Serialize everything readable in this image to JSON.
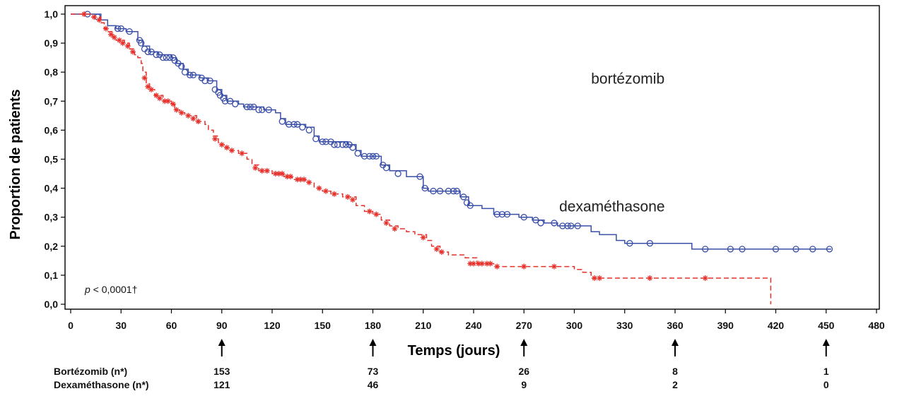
{
  "chart_data": {
    "type": "line",
    "title": "",
    "xlabel": "Temps (jours)",
    "ylabel": "Proportion de patients",
    "xlim": [
      0,
      480
    ],
    "ylim": [
      0,
      1
    ],
    "x_ticks": [
      0,
      30,
      60,
      90,
      120,
      150,
      180,
      210,
      240,
      270,
      300,
      330,
      360,
      390,
      420,
      450,
      480
    ],
    "x_tick_labels": [
      "0",
      "30",
      "60",
      "90",
      "120",
      "150",
      "180",
      "210",
      "240",
      "270",
      "300",
      "330",
      "360",
      "390",
      "420",
      "450",
      "480"
    ],
    "y_ticks": [
      0,
      0.1,
      0.2,
      0.3,
      0.4,
      0.5,
      0.6,
      0.7,
      0.8,
      0.9,
      1.0
    ],
    "y_tick_labels": [
      "0,0",
      "0,1",
      "0,2",
      "0,3",
      "0,4",
      "0,5",
      "0,6",
      "0,7",
      "0,8",
      "0,9",
      "1,0"
    ],
    "annotation": {
      "p": "p",
      "rest": " < 0,0001†"
    },
    "series": [
      {
        "name": "bortézomib",
        "color": "#3a4fa8",
        "line_style": "solid",
        "marker": "circle",
        "steps": [
          [
            0,
            1.0
          ],
          [
            18,
            0.98
          ],
          [
            22,
            0.96
          ],
          [
            27,
            0.95
          ],
          [
            33,
            0.94
          ],
          [
            40,
            0.91
          ],
          [
            43,
            0.89
          ],
          [
            47,
            0.87
          ],
          [
            52,
            0.86
          ],
          [
            60,
            0.85
          ],
          [
            63,
            0.83
          ],
          [
            67,
            0.81
          ],
          [
            70,
            0.79
          ],
          [
            77,
            0.78
          ],
          [
            82,
            0.77
          ],
          [
            87,
            0.74
          ],
          [
            90,
            0.72
          ],
          [
            93,
            0.7
          ],
          [
            100,
            0.69
          ],
          [
            103,
            0.68
          ],
          [
            110,
            0.68
          ],
          [
            115,
            0.67
          ],
          [
            122,
            0.66
          ],
          [
            125,
            0.64
          ],
          [
            128,
            0.62
          ],
          [
            140,
            0.61
          ],
          [
            145,
            0.58
          ],
          [
            148,
            0.56
          ],
          [
            165,
            0.55
          ],
          [
            170,
            0.53
          ],
          [
            173,
            0.51
          ],
          [
            185,
            0.48
          ],
          [
            190,
            0.46
          ],
          [
            200,
            0.44
          ],
          [
            210,
            0.4
          ],
          [
            213,
            0.39
          ],
          [
            222,
            0.39
          ],
          [
            232,
            0.37
          ],
          [
            237,
            0.34
          ],
          [
            245,
            0.33
          ],
          [
            252,
            0.31
          ],
          [
            262,
            0.31
          ],
          [
            267,
            0.3
          ],
          [
            275,
            0.29
          ],
          [
            282,
            0.28
          ],
          [
            290,
            0.27
          ],
          [
            300,
            0.27
          ],
          [
            310,
            0.25
          ],
          [
            315,
            0.24
          ],
          [
            325,
            0.22
          ],
          [
            330,
            0.21
          ],
          [
            370,
            0.19
          ],
          [
            453,
            0.19
          ]
        ],
        "censored": [
          [
            10,
            1.0
          ],
          [
            16,
            0.99
          ],
          [
            28,
            0.95
          ],
          [
            30,
            0.95
          ],
          [
            35,
            0.94
          ],
          [
            41,
            0.91
          ],
          [
            42,
            0.9
          ],
          [
            44,
            0.88
          ],
          [
            46,
            0.87
          ],
          [
            48,
            0.87
          ],
          [
            51,
            0.86
          ],
          [
            53,
            0.86
          ],
          [
            55,
            0.85
          ],
          [
            57,
            0.85
          ],
          [
            59,
            0.85
          ],
          [
            61,
            0.85
          ],
          [
            62,
            0.84
          ],
          [
            64,
            0.83
          ],
          [
            66,
            0.82
          ],
          [
            68,
            0.8
          ],
          [
            71,
            0.79
          ],
          [
            73,
            0.79
          ],
          [
            78,
            0.78
          ],
          [
            80,
            0.77
          ],
          [
            83,
            0.77
          ],
          [
            86,
            0.74
          ],
          [
            88,
            0.73
          ],
          [
            89,
            0.72
          ],
          [
            91,
            0.71
          ],
          [
            92,
            0.7
          ],
          [
            95,
            0.7
          ],
          [
            98,
            0.69
          ],
          [
            105,
            0.68
          ],
          [
            107,
            0.68
          ],
          [
            109,
            0.68
          ],
          [
            112,
            0.67
          ],
          [
            114,
            0.67
          ],
          [
            118,
            0.67
          ],
          [
            126,
            0.63
          ],
          [
            130,
            0.62
          ],
          [
            133,
            0.62
          ],
          [
            135,
            0.62
          ],
          [
            138,
            0.61
          ],
          [
            142,
            0.6
          ],
          [
            146,
            0.57
          ],
          [
            150,
            0.56
          ],
          [
            152,
            0.56
          ],
          [
            155,
            0.56
          ],
          [
            157,
            0.55
          ],
          [
            159,
            0.55
          ],
          [
            162,
            0.55
          ],
          [
            164,
            0.55
          ],
          [
            166,
            0.55
          ],
          [
            168,
            0.54
          ],
          [
            171,
            0.52
          ],
          [
            175,
            0.51
          ],
          [
            178,
            0.51
          ],
          [
            180,
            0.51
          ],
          [
            182,
            0.51
          ],
          [
            186,
            0.48
          ],
          [
            188,
            0.47
          ],
          [
            195,
            0.45
          ],
          [
            208,
            0.44
          ],
          [
            211,
            0.4
          ],
          [
            216,
            0.39
          ],
          [
            220,
            0.39
          ],
          [
            225,
            0.39
          ],
          [
            228,
            0.39
          ],
          [
            230,
            0.39
          ],
          [
            234,
            0.37
          ],
          [
            236,
            0.35
          ],
          [
            238,
            0.34
          ],
          [
            254,
            0.31
          ],
          [
            257,
            0.31
          ],
          [
            260,
            0.31
          ],
          [
            270,
            0.3
          ],
          [
            277,
            0.29
          ],
          [
            280,
            0.28
          ],
          [
            288,
            0.28
          ],
          [
            293,
            0.27
          ],
          [
            296,
            0.27
          ],
          [
            298,
            0.27
          ],
          [
            302,
            0.27
          ],
          [
            333,
            0.21
          ],
          [
            345,
            0.21
          ],
          [
            378,
            0.19
          ],
          [
            393,
            0.19
          ],
          [
            400,
            0.19
          ],
          [
            420,
            0.19
          ],
          [
            432,
            0.19
          ],
          [
            442,
            0.19
          ],
          [
            452,
            0.19
          ]
        ]
      },
      {
        "name": "dexaméthasone",
        "color": "#e8302a",
        "line_style": "dashed",
        "marker": "asterisk",
        "steps": [
          [
            0,
            1.0
          ],
          [
            12,
            0.99
          ],
          [
            18,
            0.97
          ],
          [
            20,
            0.95
          ],
          [
            22,
            0.94
          ],
          [
            25,
            0.92
          ],
          [
            27,
            0.91
          ],
          [
            32,
            0.9
          ],
          [
            35,
            0.88
          ],
          [
            38,
            0.86
          ],
          [
            40,
            0.85
          ],
          [
            42,
            0.83
          ],
          [
            43,
            0.8
          ],
          [
            45,
            0.76
          ],
          [
            47,
            0.74
          ],
          [
            50,
            0.72
          ],
          [
            55,
            0.7
          ],
          [
            60,
            0.69
          ],
          [
            62,
            0.67
          ],
          [
            65,
            0.66
          ],
          [
            68,
            0.65
          ],
          [
            75,
            0.63
          ],
          [
            80,
            0.62
          ],
          [
            82,
            0.6
          ],
          [
            85,
            0.58
          ],
          [
            88,
            0.55
          ],
          [
            92,
            0.54
          ],
          [
            95,
            0.53
          ],
          [
            100,
            0.52
          ],
          [
            105,
            0.5
          ],
          [
            108,
            0.48
          ],
          [
            112,
            0.46
          ],
          [
            120,
            0.45
          ],
          [
            127,
            0.44
          ],
          [
            132,
            0.43
          ],
          [
            140,
            0.42
          ],
          [
            145,
            0.4
          ],
          [
            150,
            0.39
          ],
          [
            155,
            0.38
          ],
          [
            162,
            0.37
          ],
          [
            170,
            0.34
          ],
          [
            175,
            0.32
          ],
          [
            180,
            0.31
          ],
          [
            185,
            0.29
          ],
          [
            190,
            0.27
          ],
          [
            195,
            0.26
          ],
          [
            200,
            0.25
          ],
          [
            205,
            0.24
          ],
          [
            212,
            0.22
          ],
          [
            215,
            0.2
          ],
          [
            220,
            0.18
          ],
          [
            225,
            0.17
          ],
          [
            235,
            0.16
          ],
          [
            242,
            0.14
          ],
          [
            252,
            0.13
          ],
          [
            300,
            0.12
          ],
          [
            305,
            0.11
          ],
          [
            310,
            0.09
          ],
          [
            417,
            0.09
          ],
          [
            417,
            0.0
          ]
        ],
        "censored": [
          [
            8,
            1.0
          ],
          [
            14,
            0.99
          ],
          [
            17,
            0.98
          ],
          [
            21,
            0.95
          ],
          [
            24,
            0.93
          ],
          [
            26,
            0.92
          ],
          [
            29,
            0.91
          ],
          [
            31,
            0.9
          ],
          [
            34,
            0.89
          ],
          [
            37,
            0.87
          ],
          [
            44,
            0.78
          ],
          [
            46,
            0.75
          ],
          [
            48,
            0.74
          ],
          [
            51,
            0.72
          ],
          [
            53,
            0.71
          ],
          [
            56,
            0.7
          ],
          [
            58,
            0.7
          ],
          [
            61,
            0.69
          ],
          [
            63,
            0.67
          ],
          [
            66,
            0.66
          ],
          [
            70,
            0.65
          ],
          [
            73,
            0.64
          ],
          [
            76,
            0.63
          ],
          [
            86,
            0.57
          ],
          [
            90,
            0.55
          ],
          [
            93,
            0.54
          ],
          [
            96,
            0.53
          ],
          [
            102,
            0.52
          ],
          [
            110,
            0.47
          ],
          [
            114,
            0.46
          ],
          [
            117,
            0.46
          ],
          [
            122,
            0.45
          ],
          [
            124,
            0.45
          ],
          [
            126,
            0.45
          ],
          [
            129,
            0.44
          ],
          [
            131,
            0.44
          ],
          [
            135,
            0.43
          ],
          [
            137,
            0.43
          ],
          [
            139,
            0.43
          ],
          [
            142,
            0.42
          ],
          [
            148,
            0.4
          ],
          [
            152,
            0.39
          ],
          [
            157,
            0.38
          ],
          [
            165,
            0.37
          ],
          [
            168,
            0.36
          ],
          [
            178,
            0.32
          ],
          [
            182,
            0.31
          ],
          [
            188,
            0.28
          ],
          [
            193,
            0.26
          ],
          [
            210,
            0.23
          ],
          [
            218,
            0.19
          ],
          [
            221,
            0.18
          ],
          [
            238,
            0.14
          ],
          [
            240,
            0.14
          ],
          [
            243,
            0.14
          ],
          [
            245,
            0.14
          ],
          [
            248,
            0.14
          ],
          [
            250,
            0.14
          ],
          [
            254,
            0.13
          ],
          [
            270,
            0.13
          ],
          [
            288,
            0.13
          ],
          [
            312,
            0.09
          ],
          [
            315,
            0.09
          ],
          [
            345,
            0.09
          ],
          [
            378,
            0.09
          ]
        ]
      }
    ],
    "series_labels": [
      {
        "name": "bortézomib",
        "x": 310,
        "y": 0.76
      },
      {
        "name": "dexaméthasone",
        "x": 291,
        "y": 0.32
      }
    ],
    "risk_table": {
      "times": [
        90,
        180,
        270,
        360,
        450
      ],
      "rows": [
        {
          "label": "Bortézomib (n*)",
          "values": [
            "153",
            "73",
            "26",
            "8",
            "1"
          ]
        },
        {
          "label": "Dexaméthasone (n*)",
          "values": [
            "121",
            "46",
            "9",
            "2",
            "0"
          ]
        }
      ]
    }
  }
}
